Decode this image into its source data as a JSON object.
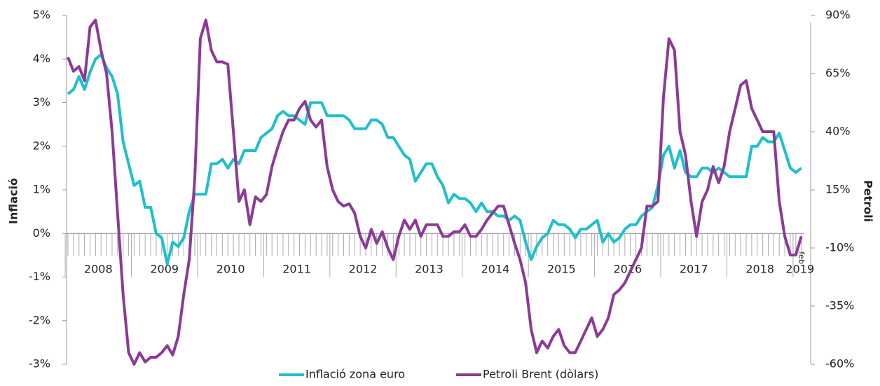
{
  "chart_data": {
    "type": "line",
    "y_label": "Inflació",
    "y2_label": "Petroli",
    "categories": [
      null,
      null,
      null,
      null,
      null,
      null,
      null,
      null,
      null,
      null,
      null,
      null,
      null,
      null,
      null,
      null,
      null,
      null,
      null,
      null,
      null,
      null,
      null,
      null,
      null,
      null,
      null,
      null,
      null,
      null,
      null,
      null,
      null,
      null,
      null,
      null,
      null,
      null,
      null,
      null,
      null,
      null,
      null,
      null,
      null,
      null,
      null,
      null,
      null,
      null,
      null,
      null,
      null,
      null,
      null,
      null,
      null,
      null,
      null,
      null,
      null,
      null,
      null,
      null,
      null,
      null,
      null,
      null,
      null,
      null,
      null,
      null,
      null,
      null,
      null,
      null,
      null,
      null,
      null,
      null,
      null,
      null,
      null,
      null,
      null,
      null,
      null,
      null,
      null,
      null,
      null,
      null,
      null,
      null,
      null,
      null,
      null,
      null,
      null,
      null,
      null,
      null,
      null,
      null,
      null,
      null,
      null,
      null,
      null,
      null,
      null,
      null,
      null,
      null,
      null,
      null,
      null,
      null,
      null,
      null,
      null,
      null,
      null,
      null,
      null,
      null,
      null,
      null,
      null,
      null,
      null,
      null,
      null,
      null
    ],
    "year_labels": [
      "2008",
      "2009",
      "2010",
      "2011",
      "2012",
      "2013",
      "2014",
      "2015",
      "2016",
      "2017",
      "2018",
      "2019"
    ],
    "annotation": "feb",
    "series": [
      {
        "name": "Inflació zona euro",
        "color": "#1fbfcc",
        "axis": "y",
        "values": [
          3.2,
          3.3,
          3.6,
          3.3,
          3.7,
          4.0,
          4.1,
          3.8,
          3.6,
          3.2,
          2.1,
          1.6,
          1.1,
          1.2,
          0.6,
          0.6,
          0.0,
          -0.1,
          -0.7,
          -0.2,
          -0.3,
          -0.1,
          0.5,
          0.9,
          0.9,
          0.9,
          1.6,
          1.6,
          1.7,
          1.5,
          1.7,
          1.6,
          1.9,
          1.9,
          1.9,
          2.2,
          2.3,
          2.4,
          2.7,
          2.8,
          2.7,
          2.7,
          2.6,
          2.5,
          3.0,
          3.0,
          3.0,
          2.7,
          2.7,
          2.7,
          2.7,
          2.6,
          2.4,
          2.4,
          2.4,
          2.6,
          2.6,
          2.5,
          2.2,
          2.2,
          2.0,
          1.8,
          1.7,
          1.2,
          1.4,
          1.6,
          1.6,
          1.3,
          1.1,
          0.7,
          0.9,
          0.8,
          0.8,
          0.7,
          0.5,
          0.7,
          0.5,
          0.5,
          0.4,
          0.4,
          0.3,
          0.4,
          0.3,
          -0.2,
          -0.6,
          -0.3,
          -0.1,
          0.0,
          0.3,
          0.2,
          0.2,
          0.1,
          -0.1,
          0.1,
          0.1,
          0.2,
          0.3,
          -0.2,
          0.0,
          -0.2,
          -0.1,
          0.1,
          0.2,
          0.2,
          0.4,
          0.5,
          0.6,
          1.1,
          1.8,
          2.0,
          1.5,
          1.9,
          1.4,
          1.3,
          1.3,
          1.5,
          1.5,
          1.4,
          1.5,
          1.4,
          1.3,
          1.3,
          1.3,
          1.3,
          2.0,
          2.0,
          2.2,
          2.1,
          2.1,
          2.3,
          1.9,
          1.5,
          1.4,
          1.5
        ]
      },
      {
        "name": "Petroli Brent (dòlars)",
        "color": "#8b3a96",
        "axis": "y2",
        "values": [
          72,
          66,
          68,
          62,
          85,
          88,
          75,
          65,
          40,
          5,
          -30,
          -55,
          -60,
          -55,
          -59,
          -57,
          -57,
          -55,
          -52,
          -56,
          -48,
          -30,
          -15,
          20,
          80,
          88,
          75,
          70,
          70,
          69,
          40,
          10,
          15,
          0,
          12,
          10,
          13,
          25,
          33,
          40,
          45,
          45,
          50,
          53,
          45,
          42,
          45,
          25,
          15,
          10,
          8,
          9,
          5,
          -5,
          -10,
          -2,
          -8,
          -3,
          -10,
          -15,
          -5,
          2,
          -2,
          2,
          -5,
          0,
          0,
          0,
          -5,
          -5,
          -3,
          -3,
          0,
          -5,
          -5,
          -2,
          2,
          5,
          8,
          8,
          0,
          -8,
          -15,
          -25,
          -45,
          -55,
          -50,
          -53,
          -48,
          -45,
          -52,
          -55,
          -55,
          -50,
          -45,
          -40,
          -48,
          -45,
          -40,
          -30,
          -28,
          -25,
          -20,
          -15,
          -10,
          8,
          8,
          10,
          55,
          80,
          75,
          40,
          30,
          10,
          -5,
          10,
          15,
          25,
          18,
          25,
          40,
          50,
          60,
          62,
          50,
          45,
          40,
          40,
          40,
          10,
          -5,
          -13,
          -13,
          -5
        ]
      }
    ],
    "ylim": [
      -3,
      5
    ],
    "yticks": [
      {
        "value": 5,
        "label": "5%"
      },
      {
        "value": 4,
        "label": "4%"
      },
      {
        "value": 3,
        "label": "3%"
      },
      {
        "value": 2,
        "label": "2%"
      },
      {
        "value": 1,
        "label": "1%"
      },
      {
        "value": 0,
        "label": "0%"
      },
      {
        "value": -1,
        "label": "-1%"
      },
      {
        "value": -2,
        "label": "-2%"
      },
      {
        "value": -3,
        "label": "-3%"
      }
    ],
    "y2lim": [
      -60,
      90
    ],
    "y2ticks": [
      {
        "value": 90,
        "label": "90%"
      },
      {
        "value": 65,
        "label": "65%"
      },
      {
        "value": 40,
        "label": "40%"
      },
      {
        "value": 15,
        "label": "15%"
      },
      {
        "value": -10,
        "label": "-10%"
      },
      {
        "value": -35,
        "label": "-35%"
      },
      {
        "value": -60,
        "label": "-60%"
      }
    ],
    "legend": "bottom"
  }
}
